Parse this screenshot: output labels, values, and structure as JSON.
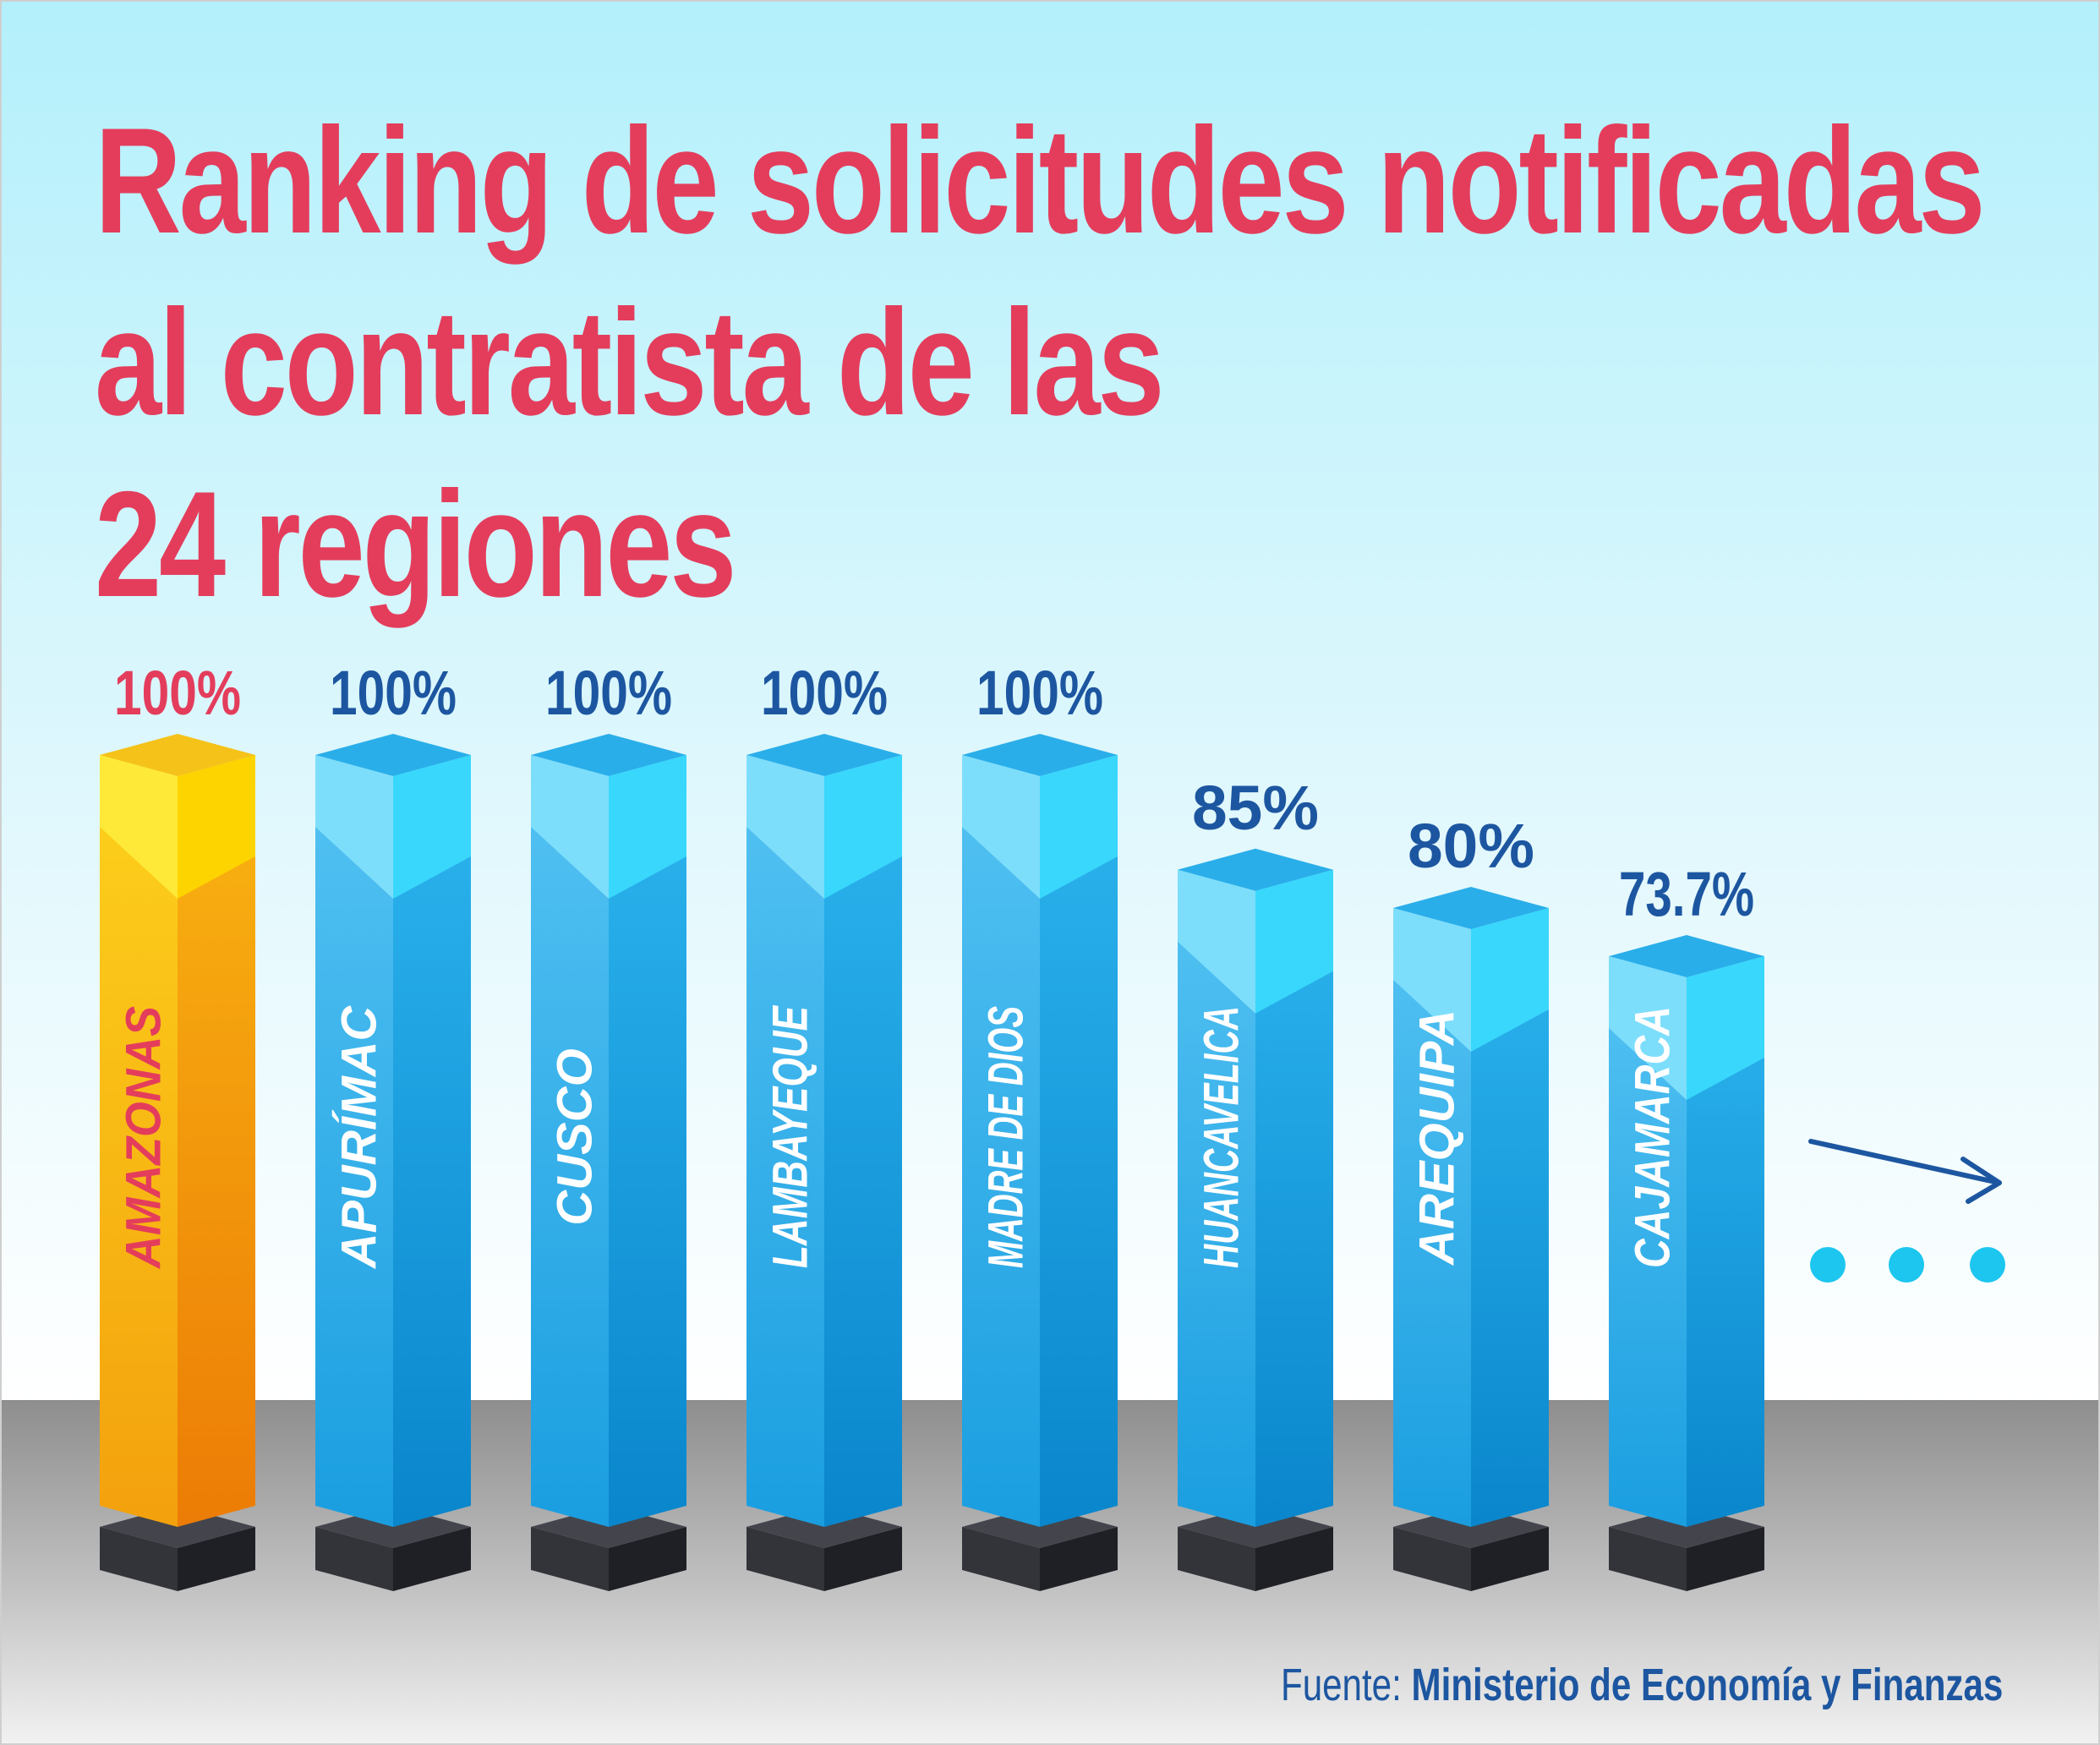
{
  "title": {
    "line1": "Ranking de solicitudes notificadas",
    "line2": "al contratista de las",
    "line3": "24 regiones"
  },
  "source": {
    "label": "Fuente:",
    "organization": "Ministerio de  Economía y Finanzas"
  },
  "colors": {
    "title": "#e43d5c",
    "highlight_bar": "#fbb60f",
    "bars": "#21a9e6",
    "labels": "#1d56a0",
    "accent_dots": "#1cc6ef"
  },
  "chart_data": {
    "type": "bar",
    "orientation": "vertical",
    "style": "3d",
    "categories": [
      "AMAZONAS",
      "APURÍMAC",
      "CUSCO",
      "LAMBAYEQUE",
      "MADRE DE DIOS",
      "HUANCAVELICA",
      "AREQUIPA",
      "CAJAMARCA"
    ],
    "values": [
      100,
      100,
      100,
      100,
      100,
      85,
      80,
      73.7
    ],
    "value_labels": [
      "100%",
      "100%",
      "100%",
      "100%",
      "100%",
      "85%",
      "80%",
      "73.7%"
    ],
    "highlight_index": 0,
    "grid": false,
    "legend": "none",
    "continues": true
  }
}
